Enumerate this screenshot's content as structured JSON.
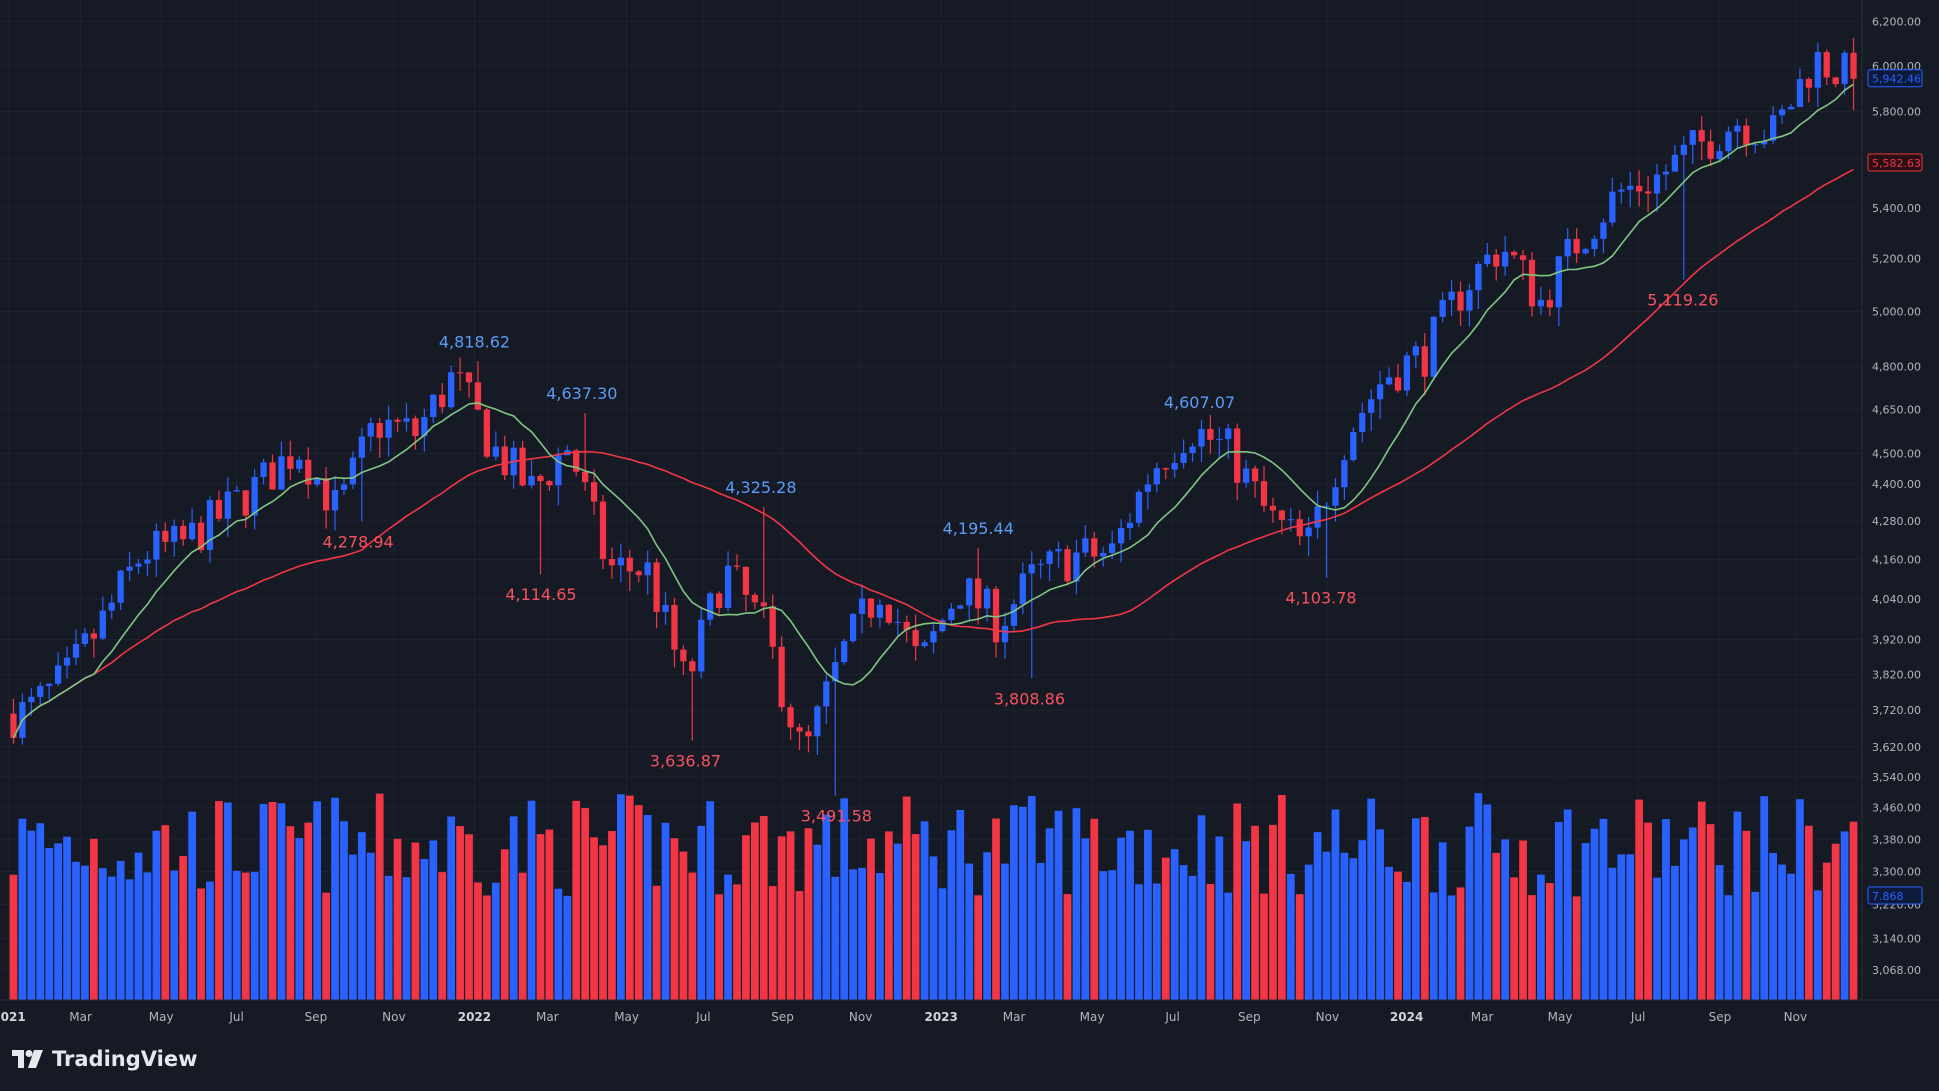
{
  "footer": {
    "brand": "TradingView"
  },
  "colors": {
    "up": "#2962ff",
    "down": "#f23645",
    "ma_short": "#81c784",
    "ma_long": "#f23645",
    "annotation_high": "#5b9cf6",
    "annotation_low": "#f7525f",
    "background": "#161a25",
    "axis_text": "#b2b5be"
  },
  "chart_data": {
    "type": "candlestick",
    "symbol_interval": "weekly",
    "ylim": [
      3000,
      6300
    ],
    "y_scale": "log",
    "y_ticks": [
      "3,068.00",
      "3,140.00",
      "3,220.00",
      "3,300.00",
      "3,380.00",
      "3,460.00",
      "3,540.00",
      "3,620.00",
      "3,720.00",
      "3,820.00",
      "3,920.00",
      "4,040.00",
      "4,160.00",
      "4,280.00",
      "4,400.00",
      "4,500.00",
      "4,650.00",
      "4,800.00",
      "5,000.00",
      "5,200.00",
      "5,400.00",
      "5,600.00",
      "5,800.00",
      "6,000.00",
      "6,200.00"
    ],
    "x_ticks": [
      {
        "label": "2021",
        "date": "2021-01-04",
        "bold": true
      },
      {
        "label": "Mar",
        "date": "2021-03-01"
      },
      {
        "label": "May",
        "date": "2021-05-03"
      },
      {
        "label": "Jul",
        "date": "2021-07-01"
      },
      {
        "label": "Sep",
        "date": "2021-09-01"
      },
      {
        "label": "Nov",
        "date": "2021-11-01"
      },
      {
        "label": "2022",
        "date": "2022-01-03",
        "bold": true
      },
      {
        "label": "Mar",
        "date": "2022-03-01"
      },
      {
        "label": "May",
        "date": "2022-05-02"
      },
      {
        "label": "Jul",
        "date": "2022-07-01"
      },
      {
        "label": "Sep",
        "date": "2022-09-01"
      },
      {
        "label": "Nov",
        "date": "2022-11-01"
      },
      {
        "label": "2023",
        "date": "2023-01-03",
        "bold": true
      },
      {
        "label": "Mar",
        "date": "2023-03-01"
      },
      {
        "label": "May",
        "date": "2023-05-01"
      },
      {
        "label": "Jul",
        "date": "2023-07-03"
      },
      {
        "label": "Sep",
        "date": "2023-09-01"
      },
      {
        "label": "Nov",
        "date": "2023-11-01"
      },
      {
        "label": "2024",
        "date": "2024-01-02",
        "bold": true
      },
      {
        "label": "Mar",
        "date": "2024-03-01"
      },
      {
        "label": "May",
        "date": "2024-05-01"
      },
      {
        "label": "Jul",
        "date": "2024-07-01"
      },
      {
        "label": "Sep",
        "date": "2024-09-03"
      },
      {
        "label": "Nov",
        "date": "2024-11-01"
      }
    ],
    "swing_points": [
      {
        "label": "4,818.62",
        "value": 4818.62,
        "date": "2022-01-03",
        "kind": "high"
      },
      {
        "label": "4,637.30",
        "value": 4637.3,
        "date": "2022-03-28",
        "kind": "high"
      },
      {
        "label": "4,325.28",
        "value": 4325.28,
        "date": "2022-08-15",
        "kind": "high"
      },
      {
        "label": "4,195.44",
        "value": 4195.44,
        "date": "2023-02-01",
        "kind": "high"
      },
      {
        "label": "4,607.07",
        "value": 4607.07,
        "date": "2023-07-24",
        "kind": "high"
      },
      {
        "label": "4,278.94",
        "value": 4278.94,
        "date": "2021-10-04",
        "kind": "low"
      },
      {
        "label": "4,114.65",
        "value": 4114.65,
        "date": "2022-02-24",
        "kind": "low"
      },
      {
        "label": "3,636.87",
        "value": 3636.87,
        "date": "2022-06-17",
        "kind": "low"
      },
      {
        "label": "3,491.58",
        "value": 3491.58,
        "date": "2022-10-13",
        "kind": "low"
      },
      {
        "label": "3,808.86",
        "value": 3808.86,
        "date": "2023-03-13",
        "kind": "low"
      },
      {
        "label": "4,103.78",
        "value": 4103.78,
        "date": "2023-10-27",
        "kind": "low"
      },
      {
        "label": "5,119.26",
        "value": 5119.26,
        "date": "2024-08-05",
        "kind": "low"
      }
    ],
    "last_values": [
      {
        "label": "6,000.00",
        "value": 6000,
        "kind": "tick"
      },
      {
        "label": "5,942.46",
        "value": 5942.46,
        "kind": "last-price"
      },
      {
        "label": "5,582.63",
        "value": 5582.63,
        "kind": "ma-long"
      },
      {
        "label": "7.868",
        "kind": "volume"
      }
    ],
    "monthly_closes": [
      [
        "2021-01",
        3714
      ],
      [
        "2021-02",
        3811
      ],
      [
        "2021-03",
        3973
      ],
      [
        "2021-04",
        4181
      ],
      [
        "2021-05",
        4204
      ],
      [
        "2021-06",
        4297
      ],
      [
        "2021-07",
        4395
      ],
      [
        "2021-08",
        4523
      ],
      [
        "2021-09",
        4308
      ],
      [
        "2021-10",
        4605
      ],
      [
        "2021-11",
        4567
      ],
      [
        "2021-12",
        4766
      ],
      [
        "2022-01",
        4516
      ],
      [
        "2022-02",
        4374
      ],
      [
        "2022-03",
        4530
      ],
      [
        "2022-04",
        4132
      ],
      [
        "2022-05",
        4132
      ],
      [
        "2022-06",
        3785
      ],
      [
        "2022-07",
        4130
      ],
      [
        "2022-08",
        3955
      ],
      [
        "2022-09",
        3586
      ],
      [
        "2022-10",
        3872
      ],
      [
        "2022-11",
        4080
      ],
      [
        "2022-12",
        3840
      ],
      [
        "2023-01",
        4077
      ],
      [
        "2023-02",
        3970
      ],
      [
        "2023-03",
        4109
      ],
      [
        "2023-04",
        4169
      ],
      [
        "2023-05",
        4180
      ],
      [
        "2023-06",
        4450
      ],
      [
        "2023-07",
        4589
      ],
      [
        "2023-08",
        4508
      ],
      [
        "2023-09",
        4288
      ],
      [
        "2023-10",
        4194
      ],
      [
        "2023-11",
        4568
      ],
      [
        "2023-12",
        4770
      ],
      [
        "2024-01",
        4846
      ],
      [
        "2024-02",
        5096
      ],
      [
        "2024-03",
        5254
      ],
      [
        "2024-04",
        5036
      ],
      [
        "2024-05",
        5278
      ],
      [
        "2024-06",
        5460
      ],
      [
        "2024-07",
        5522
      ],
      [
        "2024-08",
        5648
      ],
      [
        "2024-09",
        5762
      ],
      [
        "2024-10",
        5705
      ],
      [
        "2024-11",
        6032
      ],
      [
        "2024-12",
        5942
      ]
    ]
  }
}
